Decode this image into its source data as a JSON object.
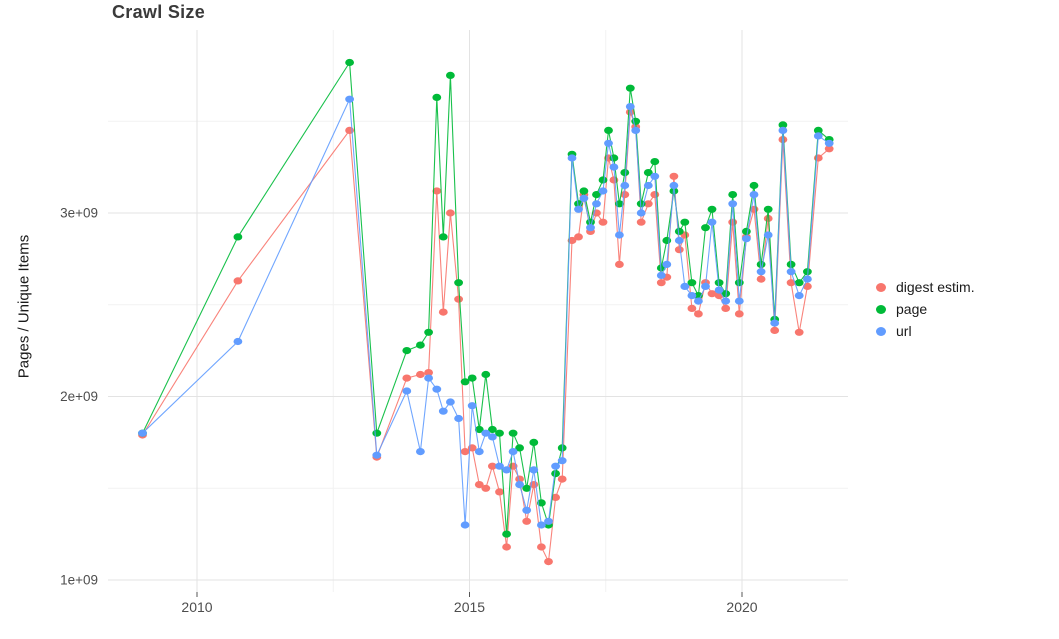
{
  "chart_data": {
    "type": "line",
    "title": "Crawl Size",
    "xlabel": "",
    "ylabel": "Pages / Unique Items",
    "legend_position": "right",
    "grid": true,
    "background": "#ffffff",
    "grid_major_color": "#e3e3e3",
    "grid_minor_color": "#f2f2f2",
    "axis_text_color": "#4d4d4d",
    "xlim": [
      2008.4,
      2021.95
    ],
    "ylim": [
      930000000.0,
      4000000000.0
    ],
    "x_ticks": [
      {
        "value": 2010,
        "label": "2010"
      },
      {
        "value": 2015,
        "label": "2015"
      },
      {
        "value": 2020,
        "label": "2020"
      }
    ],
    "x_minor_ticks": [
      2012.5,
      2017.5
    ],
    "y_ticks": [
      {
        "value": 1000000000.0,
        "label": "1e+09"
      },
      {
        "value": 2000000000.0,
        "label": "2e+09"
      },
      {
        "value": 3000000000.0,
        "label": "3e+09"
      }
    ],
    "y_minor_ticks": [
      1500000000.0,
      2500000000.0,
      3500000000.0
    ],
    "x": [
      2009.0,
      2010.75,
      2012.8,
      2013.3,
      2013.85,
      2014.1,
      2014.25,
      2014.4,
      2014.52,
      2014.65,
      2014.8,
      2014.92,
      2015.05,
      2015.18,
      2015.3,
      2015.42,
      2015.55,
      2015.68,
      2015.8,
      2015.92,
      2016.05,
      2016.18,
      2016.32,
      2016.45,
      2016.58,
      2016.7,
      2016.88,
      2017.0,
      2017.1,
      2017.22,
      2017.33,
      2017.45,
      2017.55,
      2017.65,
      2017.75,
      2017.85,
      2017.95,
      2018.05,
      2018.15,
      2018.28,
      2018.4,
      2018.52,
      2018.62,
      2018.75,
      2018.85,
      2018.95,
      2019.08,
      2019.2,
      2019.33,
      2019.45,
      2019.58,
      2019.7,
      2019.83,
      2019.95,
      2020.08,
      2020.22,
      2020.35,
      2020.48,
      2020.6,
      2020.75,
      2020.9,
      2021.05,
      2021.2,
      2021.4,
      2021.6
    ],
    "series": [
      {
        "name": "digest estim.",
        "color": "#F8766D",
        "values": [
          1790000000.0,
          2630000000.0,
          3450000000.0,
          1670000000.0,
          2100000000.0,
          2120000000.0,
          2130000000.0,
          3120000000.0,
          2460000000.0,
          3000000000.0,
          2530000000.0,
          1700000000.0,
          1720000000.0,
          1520000000.0,
          1500000000.0,
          1620000000.0,
          1480000000.0,
          1180000000.0,
          1620000000.0,
          1550000000.0,
          1320000000.0,
          1520000000.0,
          1180000000.0,
          1100000000.0,
          1450000000.0,
          1550000000.0,
          2850000000.0,
          2870000000.0,
          3100000000.0,
          2900000000.0,
          3000000000.0,
          2950000000.0,
          3300000000.0,
          3180000000.0,
          2720000000.0,
          3100000000.0,
          3550000000.0,
          3470000000.0,
          2950000000.0,
          3050000000.0,
          3100000000.0,
          2620000000.0,
          2650000000.0,
          3200000000.0,
          2800000000.0,
          2880000000.0,
          2480000000.0,
          2450000000.0,
          2620000000.0,
          2560000000.0,
          2550000000.0,
          2480000000.0,
          2950000000.0,
          2450000000.0,
          2870000000.0,
          3020000000.0,
          2640000000.0,
          2970000000.0,
          2360000000.0,
          3400000000.0,
          2620000000.0,
          2350000000.0,
          2600000000.0,
          3300000000.0,
          3350000000.0
        ]
      },
      {
        "name": "page",
        "color": "#00BA38",
        "values": [
          1800000000.0,
          2870000000.0,
          3820000000.0,
          1800000000.0,
          2250000000.0,
          2280000000.0,
          2350000000.0,
          3630000000.0,
          2870000000.0,
          3750000000.0,
          2620000000.0,
          2080000000.0,
          2100000000.0,
          1820000000.0,
          2120000000.0,
          1820000000.0,
          1800000000.0,
          1250000000.0,
          1800000000.0,
          1720000000.0,
          1500000000.0,
          1750000000.0,
          1420000000.0,
          1300000000.0,
          1580000000.0,
          1720000000.0,
          3320000000.0,
          3050000000.0,
          3120000000.0,
          2950000000.0,
          3100000000.0,
          3180000000.0,
          3450000000.0,
          3300000000.0,
          3050000000.0,
          3220000000.0,
          3680000000.0,
          3500000000.0,
          3050000000.0,
          3220000000.0,
          3280000000.0,
          2700000000.0,
          2850000000.0,
          3120000000.0,
          2900000000.0,
          2950000000.0,
          2620000000.0,
          2550000000.0,
          2920000000.0,
          3020000000.0,
          2620000000.0,
          2560000000.0,
          3100000000.0,
          2620000000.0,
          2900000000.0,
          3150000000.0,
          2720000000.0,
          3020000000.0,
          2420000000.0,
          3480000000.0,
          2720000000.0,
          2620000000.0,
          2680000000.0,
          3450000000.0,
          3400000000.0
        ]
      },
      {
        "name": "url",
        "color": "#619CFF",
        "values": [
          1800000000.0,
          2300000000.0,
          3620000000.0,
          1680000000.0,
          2030000000.0,
          1700000000.0,
          2100000000.0,
          2040000000.0,
          1920000000.0,
          1970000000.0,
          1880000000.0,
          1300000000.0,
          1950000000.0,
          1700000000.0,
          1800000000.0,
          1780000000.0,
          1620000000.0,
          1600000000.0,
          1700000000.0,
          1520000000.0,
          1380000000.0,
          1600000000.0,
          1300000000.0,
          1320000000.0,
          1620000000.0,
          1650000000.0,
          3300000000.0,
          3020000000.0,
          3080000000.0,
          2920000000.0,
          3050000000.0,
          3120000000.0,
          3380000000.0,
          3250000000.0,
          2880000000.0,
          3150000000.0,
          3580000000.0,
          3450000000.0,
          3000000000.0,
          3150000000.0,
          3200000000.0,
          2660000000.0,
          2720000000.0,
          3150000000.0,
          2850000000.0,
          2600000000.0,
          2550000000.0,
          2520000000.0,
          2600000000.0,
          2950000000.0,
          2580000000.0,
          2520000000.0,
          3050000000.0,
          2520000000.0,
          2860000000.0,
          3100000000.0,
          2680000000.0,
          2880000000.0,
          2400000000.0,
          3450000000.0,
          2680000000.0,
          2550000000.0,
          2640000000.0,
          3420000000.0,
          3380000000.0
        ]
      }
    ]
  }
}
